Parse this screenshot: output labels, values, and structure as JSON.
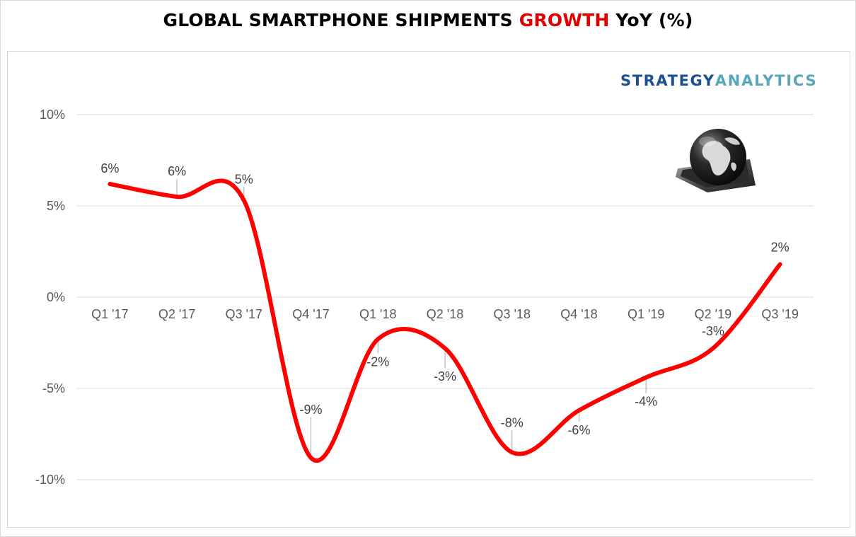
{
  "title": {
    "part1": "GLOBAL SMARTPHONE SHIPMENTS ",
    "highlight": "GROWTH",
    "part2": " YoY (%)"
  },
  "brand": {
    "part1": "STRATEGY",
    "part2": "ANALYTICS"
  },
  "icon": "globe-on-smartphone-icon",
  "colors": {
    "line": "#ff0000",
    "title_highlight": "#e00000",
    "grid": "#d9d9d9",
    "brand_dark": "#1b4f8f",
    "brand_light": "#5aa6b8"
  },
  "chart_data": {
    "type": "line",
    "title": "GLOBAL SMARTPHONE SHIPMENTS GROWTH YoY (%)",
    "xlabel": "",
    "ylabel": "",
    "categories": [
      "Q1 '17",
      "Q2 '17",
      "Q3 '17",
      "Q4 '17",
      "Q1 '18",
      "Q2 '18",
      "Q3 '18",
      "Q4 '18",
      "Q1 '19",
      "Q2 '19",
      "Q3 '19"
    ],
    "series": [
      {
        "name": "Global Smartphone Shipments Growth YoY",
        "values": [
          6.2,
          5.5,
          5.3,
          -8.8,
          -2.3,
          -2.8,
          -8.5,
          -6.2,
          -4.4,
          -2.8,
          1.8
        ],
        "labels": [
          "6%",
          "6%",
          "5%",
          "-9%",
          "-2%",
          "-3%",
          "-8%",
          "-6%",
          "-4%",
          "-3%",
          "2%"
        ]
      }
    ],
    "ylim": [
      -10,
      10
    ],
    "yticks": [
      10,
      5,
      0,
      -5,
      -10
    ],
    "ytick_labels": [
      "10%",
      "5%",
      "0%",
      "-5%",
      "-10%"
    ],
    "grid": true,
    "legend": "none"
  }
}
